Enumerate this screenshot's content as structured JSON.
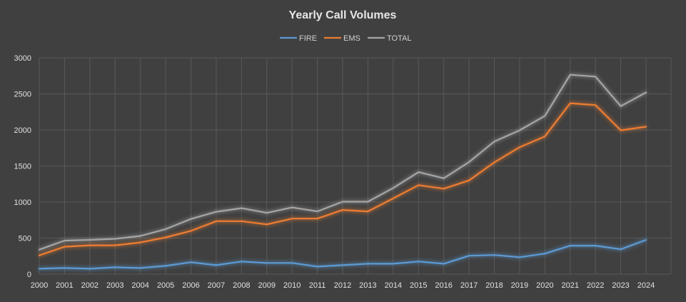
{
  "chart_data": {
    "type": "line",
    "title": "Yearly Call Volumes",
    "xlabel": "",
    "ylabel": "",
    "ylim": [
      0,
      3000
    ],
    "yticks": [
      0,
      500,
      1000,
      1500,
      2000,
      2500,
      3000
    ],
    "grid": true,
    "legend_position": "top-center",
    "categories": [
      "2000",
      "2001",
      "2002",
      "2003",
      "2004",
      "2005",
      "2006",
      "2007",
      "2008",
      "2009",
      "2010",
      "2011",
      "2012",
      "2013",
      "2014",
      "2015",
      "2016",
      "2017",
      "2018",
      "2019",
      "2020",
      "2021",
      "2022",
      "2023",
      "2024"
    ],
    "series": [
      {
        "name": "FIRE",
        "color": "#5b9bd5",
        "values": [
          75,
          85,
          75,
          95,
          85,
          115,
          165,
          125,
          175,
          155,
          155,
          105,
          125,
          145,
          145,
          175,
          145,
          255,
          265,
          235,
          285,
          395,
          395,
          345,
          475
        ]
      },
      {
        "name": "EMS",
        "color": "#ed7d31",
        "values": [
          260,
          380,
          400,
          400,
          440,
          510,
          600,
          735,
          735,
          690,
          770,
          770,
          890,
          870,
          1050,
          1235,
          1185,
          1300,
          1550,
          1760,
          1910,
          2370,
          2345,
          1995,
          2045
        ]
      },
      {
        "name": "TOTAL",
        "color": "#a5a5a5",
        "values": [
          340,
          465,
          475,
          490,
          530,
          625,
          765,
          865,
          915,
          850,
          925,
          870,
          1005,
          1005,
          1195,
          1415,
          1330,
          1555,
          1840,
          1995,
          2195,
          2765,
          2740,
          2330,
          2520
        ]
      }
    ]
  }
}
